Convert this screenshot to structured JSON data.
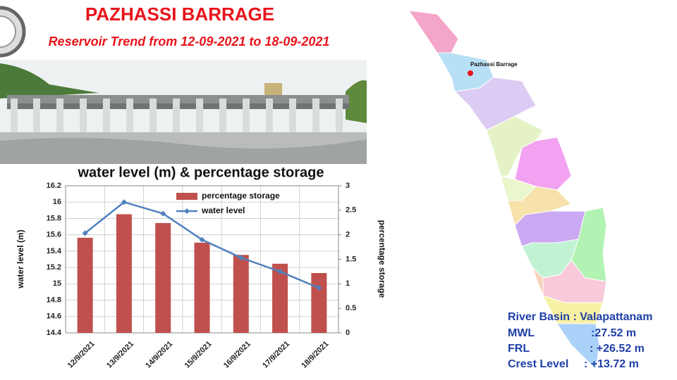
{
  "header": {
    "title": "PAZHASSI BARRAGE",
    "subtitle": "Reservoir Trend from 12-09-2021 to 18-09-2021"
  },
  "chart_data": {
    "type": "bar_line",
    "title": "water level (m) & percentage storage",
    "categories": [
      "12/9/2021",
      "13/9/2021",
      "14/9/2021",
      "15/9/2021",
      "16/9/2021",
      "17/9/2021",
      "18/9/2021"
    ],
    "series": [
      {
        "name": "percentage storage",
        "type": "bar",
        "axis": "y2",
        "color": "#c0504d",
        "values": [
          1.94,
          2.42,
          2.24,
          1.84,
          1.59,
          1.41,
          1.22
        ]
      },
      {
        "name": "water level",
        "type": "line",
        "axis": "y",
        "color": "#4f81bd",
        "values": [
          15.62,
          16.0,
          15.86,
          15.54,
          15.32,
          15.15,
          14.95
        ]
      }
    ],
    "y_label": "water level (m)",
    "y2_label": "percentage storage",
    "ylim": [
      14.4,
      16.2
    ],
    "yticks": [
      14.4,
      14.6,
      14.8,
      15,
      15.2,
      15.4,
      15.6,
      15.8,
      16,
      16.2
    ],
    "y2lim": [
      0,
      3
    ],
    "y2ticks": [
      0,
      0.5,
      1,
      1.5,
      2,
      2.5,
      3
    ],
    "grid": true,
    "legend": "top"
  },
  "map": {
    "marker_label": "Pazhassi Barrage"
  },
  "info": [
    {
      "label": "River Basin : Valapattanam"
    },
    {
      "label": "MWL",
      "value": ":27.52 m"
    },
    {
      "label": "FRL",
      "value": ": +26.52 m"
    },
    {
      "label": "Crest Level",
      "value": ": +13.72 m"
    }
  ]
}
